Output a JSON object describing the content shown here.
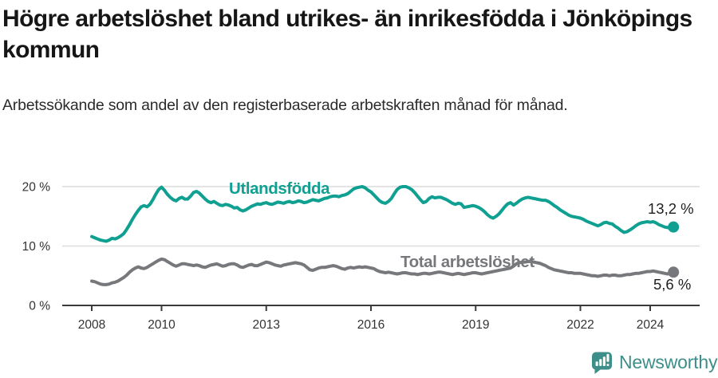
{
  "title": "Högre arbetslöshet bland utrikes- än inrikesfödda i Jönköpings kommun",
  "subtitle": "Arbetssökande som andel av den registerbaserade arbetskraften månad för månad.",
  "colors": {
    "teal": "#10a092",
    "gray": "#77787b",
    "axis": "#3a3a3a",
    "grid": "#dcdcdc",
    "tick_text": "#333333",
    "logo": "#3d8e89"
  },
  "chart_data": {
    "type": "line",
    "x_start_year": 2008,
    "x_step_months": 1,
    "x_ticks": [
      2008,
      2010,
      2013,
      2016,
      2019,
      2022,
      2024
    ],
    "y_ticks": [
      {
        "value": 0,
        "label": "0 %"
      },
      {
        "value": 10,
        "label": "10 %"
      },
      {
        "value": 20,
        "label": "20 %"
      }
    ],
    "ylim": [
      0,
      21.5
    ],
    "grid": "horizontal",
    "legend_position": "direct-labels-on-lines",
    "series": [
      {
        "name": "Utlandsfödda",
        "color": "#10a092",
        "end_label": "13,2 %",
        "end_value": 13.2,
        "values": [
          11.6,
          11.4,
          11.2,
          11.0,
          10.9,
          10.8,
          11.0,
          11.3,
          11.2,
          11.4,
          11.7,
          12.1,
          12.8,
          13.6,
          14.5,
          15.3,
          16.0,
          16.6,
          16.8,
          16.6,
          17.0,
          17.8,
          18.7,
          19.5,
          19.9,
          19.4,
          18.7,
          18.2,
          17.8,
          17.6,
          18.0,
          18.2,
          17.9,
          17.9,
          18.4,
          19.0,
          19.2,
          18.9,
          18.4,
          17.9,
          17.5,
          17.3,
          17.5,
          17.2,
          16.9,
          16.8,
          17.0,
          16.9,
          16.7,
          16.4,
          16.5,
          16.1,
          15.9,
          16.1,
          16.4,
          16.7,
          16.9,
          17.1,
          17.0,
          17.2,
          17.3,
          17.1,
          17.0,
          17.2,
          17.4,
          17.3,
          17.2,
          17.4,
          17.5,
          17.3,
          17.4,
          17.6,
          17.5,
          17.3,
          17.4,
          17.6,
          17.8,
          17.7,
          17.6,
          17.8,
          18.0,
          18.1,
          18.3,
          18.4,
          18.4,
          18.3,
          18.5,
          18.6,
          18.8,
          19.2,
          19.6,
          19.8,
          19.9,
          20.0,
          19.8,
          19.4,
          19.1,
          18.6,
          18.1,
          17.6,
          17.3,
          17.2,
          17.5,
          18.0,
          18.8,
          19.5,
          19.9,
          20.0,
          20.0,
          19.8,
          19.5,
          19.0,
          18.4,
          17.8,
          17.3,
          17.5,
          18.0,
          18.3,
          18.1,
          18.2,
          18.2,
          18.0,
          17.8,
          17.5,
          17.2,
          17.0,
          17.2,
          17.1,
          16.5,
          16.6,
          16.7,
          16.8,
          16.7,
          16.5,
          16.2,
          15.8,
          15.3,
          14.9,
          14.7,
          15.0,
          15.4,
          16.0,
          16.6,
          17.1,
          17.3,
          16.9,
          17.2,
          17.6,
          17.9,
          18.1,
          18.2,
          18.1,
          18.0,
          17.9,
          17.8,
          17.7,
          17.7,
          17.5,
          17.2,
          16.8,
          16.5,
          16.1,
          15.8,
          15.5,
          15.2,
          15.0,
          14.9,
          14.8,
          14.7,
          14.5,
          14.2,
          14.0,
          13.8,
          13.6,
          13.4,
          13.6,
          13.9,
          14.0,
          13.8,
          13.7,
          13.3,
          13.0,
          12.6,
          12.3,
          12.4,
          12.7,
          13.0,
          13.4,
          13.7,
          13.9,
          14.0,
          14.1,
          14.0,
          14.1,
          13.9,
          13.6,
          13.4,
          13.2,
          13.1,
          13.0,
          13.2
        ]
      },
      {
        "name": "Total arbetslöshet",
        "color": "#77787b",
        "end_label": "5,6 %",
        "end_value": 5.6,
        "values": [
          4.1,
          4.0,
          3.8,
          3.6,
          3.5,
          3.5,
          3.6,
          3.8,
          3.9,
          4.1,
          4.4,
          4.7,
          5.1,
          5.6,
          6.0,
          6.3,
          6.5,
          6.3,
          6.2,
          6.4,
          6.7,
          7.0,
          7.3,
          7.6,
          7.8,
          7.7,
          7.4,
          7.1,
          6.8,
          6.6,
          6.8,
          7.0,
          7.0,
          6.9,
          6.8,
          6.7,
          6.8,
          6.7,
          6.5,
          6.4,
          6.6,
          6.8,
          6.9,
          7.0,
          6.8,
          6.6,
          6.7,
          6.9,
          7.0,
          7.0,
          6.8,
          6.5,
          6.4,
          6.6,
          6.8,
          6.9,
          6.7,
          6.7,
          6.9,
          7.1,
          7.3,
          7.2,
          7.0,
          6.8,
          6.7,
          6.6,
          6.8,
          6.9,
          7.0,
          7.1,
          7.2,
          7.1,
          7.0,
          6.8,
          6.4,
          6.0,
          5.9,
          6.1,
          6.3,
          6.4,
          6.4,
          6.5,
          6.6,
          6.7,
          6.6,
          6.4,
          6.2,
          6.1,
          6.3,
          6.4,
          6.3,
          6.4,
          6.5,
          6.4,
          6.5,
          6.4,
          6.3,
          6.2,
          5.9,
          5.7,
          5.6,
          5.5,
          5.6,
          5.5,
          5.4,
          5.3,
          5.4,
          5.5,
          5.5,
          5.4,
          5.3,
          5.3,
          5.2,
          5.3,
          5.4,
          5.4,
          5.3,
          5.4,
          5.5,
          5.6,
          5.6,
          5.5,
          5.4,
          5.3,
          5.2,
          5.3,
          5.4,
          5.3,
          5.2,
          5.3,
          5.4,
          5.5,
          5.5,
          5.4,
          5.3,
          5.4,
          5.5,
          5.6,
          5.7,
          5.8,
          5.9,
          6.0,
          6.1,
          6.2,
          6.3,
          6.6,
          7.0,
          7.2,
          7.3,
          7.3,
          7.4,
          7.4,
          7.3,
          7.2,
          7.1,
          6.9,
          6.7,
          6.4,
          6.2,
          6.0,
          5.9,
          5.8,
          5.7,
          5.6,
          5.5,
          5.5,
          5.4,
          5.4,
          5.4,
          5.3,
          5.2,
          5.1,
          5.0,
          5.0,
          4.9,
          5.0,
          5.1,
          5.1,
          5.0,
          5.1,
          5.1,
          5.0,
          5.0,
          5.1,
          5.2,
          5.2,
          5.3,
          5.4,
          5.4,
          5.5,
          5.6,
          5.7,
          5.7,
          5.8,
          5.7,
          5.6,
          5.5,
          5.4,
          5.3,
          5.4,
          5.6
        ]
      }
    ]
  },
  "branding": {
    "logo_text": "Newsworthy"
  }
}
